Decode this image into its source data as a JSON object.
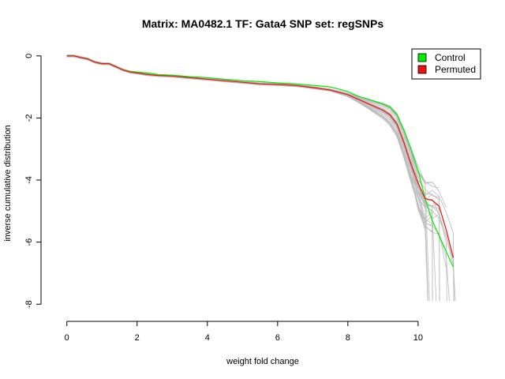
{
  "chart_data": {
    "type": "line",
    "title": "Matrix: MA0482.1 TF: Gata4 SNP set: regSNPs",
    "xlabel": "weight fold change",
    "ylabel": "inverse cumulative distribution",
    "xlim": [
      -0.6,
      11.8
    ],
    "ylim": [
      -8.4,
      0.3
    ],
    "xticks": [
      0,
      2,
      4,
      6,
      8,
      10
    ],
    "yticks": [
      0,
      -2,
      -4,
      -6,
      -8
    ],
    "legend": {
      "position": "top-right",
      "entries": [
        {
          "label": "Control",
          "color": "#00ee00"
        },
        {
          "label": "Permuted",
          "color": "#ee1111"
        }
      ]
    },
    "colors": {
      "background_series": "#bbbbbb",
      "control": "#00ee00",
      "permuted": "#ee1111"
    },
    "background_series_count": 30,
    "series": [
      {
        "name": "Control",
        "color": "#00ee00",
        "x": [
          0,
          0.2,
          0.4,
          0.6,
          0.8,
          1.0,
          1.2,
          1.4,
          1.6,
          1.8,
          2.0,
          2.3,
          2.6,
          3.0,
          3.5,
          4.0,
          4.5,
          5.0,
          5.5,
          6.0,
          6.5,
          7.0,
          7.5,
          8.0,
          8.3,
          8.6,
          9.0,
          9.2,
          9.4,
          9.6,
          9.8,
          10.0,
          10.2,
          10.4,
          10.6,
          10.8,
          11.0
        ],
        "y": [
          0,
          0,
          -0.05,
          -0.1,
          -0.2,
          -0.25,
          -0.25,
          -0.35,
          -0.45,
          -0.5,
          -0.52,
          -0.55,
          -0.6,
          -0.62,
          -0.67,
          -0.7,
          -0.75,
          -0.8,
          -0.83,
          -0.87,
          -0.9,
          -0.95,
          -1.0,
          -1.15,
          -1.3,
          -1.4,
          -1.55,
          -1.65,
          -1.9,
          -2.4,
          -3.0,
          -3.7,
          -4.6,
          -5.3,
          -5.8,
          -6.3,
          -6.8
        ]
      },
      {
        "name": "Permuted",
        "color": "#ee1111",
        "x": [
          0,
          0.2,
          0.4,
          0.6,
          0.8,
          1.0,
          1.2,
          1.4,
          1.6,
          1.8,
          2.0,
          2.3,
          2.6,
          3.0,
          3.5,
          4.0,
          4.5,
          5.0,
          5.5,
          6.0,
          6.5,
          7.0,
          7.5,
          8.0,
          8.3,
          8.6,
          9.0,
          9.2,
          9.4,
          9.6,
          9.8,
          10.0,
          10.2,
          10.4,
          10.6,
          10.8,
          11.0
        ],
        "y": [
          0,
          0,
          -0.05,
          -0.1,
          -0.2,
          -0.25,
          -0.25,
          -0.35,
          -0.45,
          -0.52,
          -0.55,
          -0.6,
          -0.63,
          -0.65,
          -0.7,
          -0.75,
          -0.8,
          -0.85,
          -0.9,
          -0.92,
          -0.95,
          -1.02,
          -1.1,
          -1.25,
          -1.4,
          -1.55,
          -1.75,
          -1.9,
          -2.2,
          -2.8,
          -3.5,
          -4.1,
          -4.6,
          -4.65,
          -4.85,
          -5.6,
          -6.5
        ]
      }
    ]
  }
}
